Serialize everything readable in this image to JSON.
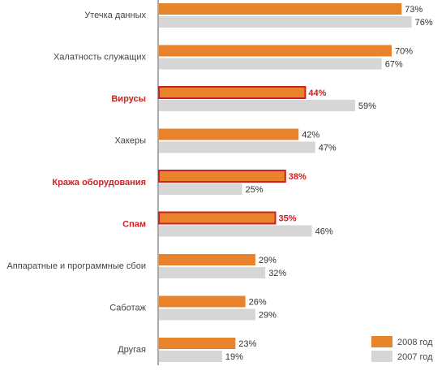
{
  "colors": {
    "series_2008": "#e8832b",
    "series_2007": "#d6d6d6",
    "highlight": "#cc2222",
    "axis": "#555555",
    "text": "#444444"
  },
  "chart_data": {
    "type": "bar",
    "orientation": "horizontal",
    "categories": [
      "Утечка данных",
      "Халатность служащих",
      "Вирусы",
      "Хакеры",
      "Кража оборудования",
      "Спам",
      "Аппаратные и программные сбои",
      "Саботаж",
      "Другая"
    ],
    "highlighted_categories": [
      "Вирусы",
      "Кража оборудования",
      "Спам"
    ],
    "series": [
      {
        "name": "2008 год",
        "values": [
          73,
          70,
          44,
          42,
          38,
          35,
          29,
          26,
          23
        ],
        "labels": [
          "73%",
          "70%",
          "44%",
          "42%",
          "38%",
          "35%",
          "29%",
          "26%",
          "23%"
        ]
      },
      {
        "name": "2007 год",
        "values": [
          76,
          67,
          59,
          47,
          25,
          46,
          32,
          29,
          19
        ],
        "labels": [
          "76%",
          "67%",
          "59%",
          "47%",
          "25%",
          "46%",
          "32%",
          "29%",
          "19%"
        ]
      }
    ],
    "xlim": [
      0,
      100
    ],
    "grid": false,
    "legend_position": "bottom-right"
  }
}
